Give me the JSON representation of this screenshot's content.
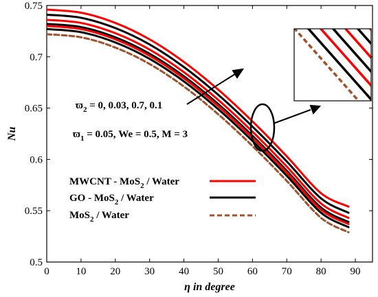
{
  "chart_data": {
    "type": "line",
    "xlabel": "η in degree",
    "ylabel": "Nu",
    "xlim": [
      0,
      95
    ],
    "ylim": [
      0.5,
      0.75
    ],
    "xticks": [
      0,
      10,
      20,
      30,
      40,
      50,
      60,
      70,
      80,
      90
    ],
    "yticks": [
      0.5,
      0.55,
      0.6,
      0.65,
      0.7,
      0.75
    ],
    "x": [
      0,
      10,
      20,
      30,
      40,
      50,
      60,
      70,
      80,
      88
    ],
    "series": [
      {
        "group": "MWCNT - MoS2 / Water",
        "color": "#ff0000",
        "dash": "solid",
        "values": [
          0.746,
          0.743,
          0.733,
          0.717,
          0.695,
          0.668,
          0.637,
          0.603,
          0.567,
          0.554
        ]
      },
      {
        "group": "GO - MoS2 / Water",
        "color": "#000000",
        "dash": "solid",
        "values": [
          0.741,
          0.738,
          0.728,
          0.712,
          0.69,
          0.663,
          0.632,
          0.598,
          0.562,
          0.548
        ]
      },
      {
        "group": "MWCNT - MoS2 / Water",
        "color": "#ff0000",
        "dash": "solid",
        "values": [
          0.736,
          0.733,
          0.723,
          0.707,
          0.685,
          0.658,
          0.627,
          0.593,
          0.557,
          0.543
        ]
      },
      {
        "group": "GO - MoS2 / Water",
        "color": "#000000",
        "dash": "solid",
        "values": [
          0.732,
          0.729,
          0.719,
          0.703,
          0.681,
          0.654,
          0.623,
          0.589,
          0.553,
          0.539
        ]
      },
      {
        "group": "MWCNT - MoS2 / Water",
        "color": "#ff0000",
        "dash": "solid",
        "values": [
          0.73,
          0.727,
          0.717,
          0.701,
          0.679,
          0.652,
          0.621,
          0.587,
          0.551,
          0.537
        ]
      },
      {
        "group": "GO - MoS2 / Water",
        "color": "#000000",
        "dash": "solid",
        "values": [
          0.727,
          0.724,
          0.714,
          0.698,
          0.676,
          0.649,
          0.618,
          0.584,
          0.548,
          0.534
        ]
      },
      {
        "group": "MoS2 / Water",
        "color": "#a0522d",
        "dash": "dashed",
        "values": [
          0.722,
          0.719,
          0.709,
          0.693,
          0.671,
          0.644,
          0.613,
          0.579,
          0.543,
          0.529
        ]
      }
    ],
    "legend": {
      "placement": "bottom-left",
      "entries": [
        {
          "label": "MWCNT - MoS2 / Water",
          "base": "MWCNT - MoS",
          "sub": "2",
          "tail": " / Water",
          "color": "#ff0000",
          "dash": "solid"
        },
        {
          "label": "GO - MoS2 / Water",
          "base": "GO - MoS",
          "sub": "2",
          "tail": " / Water",
          "color": "#000000",
          "dash": "solid"
        },
        {
          "label": "MoS2 / Water",
          "base": "MoS",
          "sub": "2",
          "tail": " / Water",
          "color": "#a0522d",
          "dash": "dashed"
        }
      ]
    },
    "annotations": {
      "parameter_sweep": {
        "symbol": "ϖ",
        "sub": "2",
        "text": " = 0, 0.03, 0.7, 0.1"
      },
      "fixed_params": {
        "symbol": "ϖ",
        "sub": "1",
        "text": " = 0.05, We = 0.5, M = 3"
      }
    },
    "zoom_inset": true,
    "grid": false
  }
}
